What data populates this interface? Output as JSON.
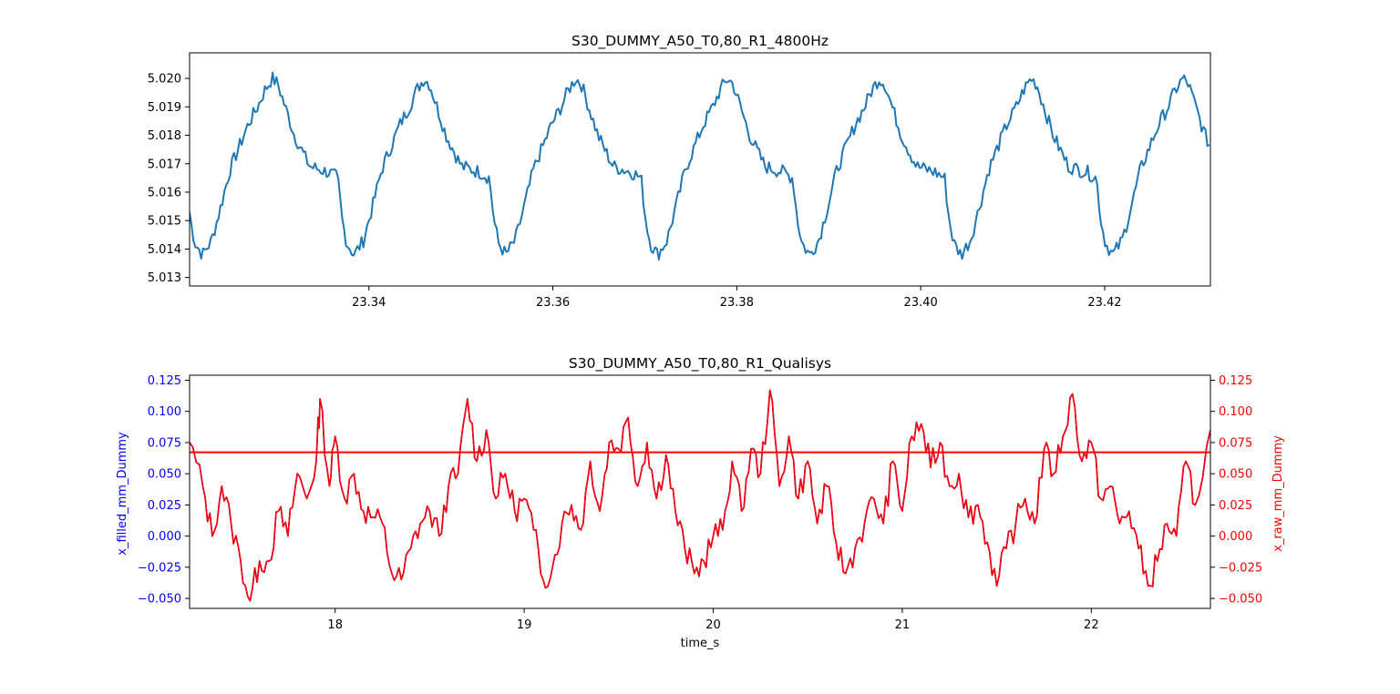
{
  "colors": {
    "top_series": "#1f77b4",
    "filled": "#0000ff",
    "raw": "#ff0000",
    "horizontal_line": "#ff0000",
    "axes": "#000000"
  },
  "chart_data": [
    {
      "type": "line",
      "title": "S30_DUMMY_A50_T0,80_R1_4800Hz",
      "xlabel": "",
      "ylabel": "",
      "xlim": [
        23.3205,
        23.4315
      ],
      "ylim": [
        5.0127,
        5.0209
      ],
      "grid": false,
      "x_ticks": [
        23.34,
        23.36,
        23.38,
        23.4,
        23.42
      ],
      "x_tick_labels": [
        "23.34",
        "23.36",
        "23.38",
        "23.40",
        "23.42"
      ],
      "y_ticks": [
        5.013,
        5.014,
        5.015,
        5.016,
        5.017,
        5.018,
        5.019,
        5.02
      ],
      "y_tick_labels": [
        "5.013",
        "5.014",
        "5.015",
        "5.016",
        "5.017",
        "5.018",
        "5.019",
        "5.020"
      ],
      "series": [
        {
          "color": "#1f77b4",
          "period": 0.0165,
          "x_start": 23.3205,
          "x_end": 23.4315,
          "cycle": [
            [
              0.0,
              5.0169
            ],
            [
              0.001,
              5.0168
            ],
            [
              0.002,
              5.0167
            ],
            [
              0.003,
              5.0165
            ],
            [
              0.0035,
              5.015
            ],
            [
              0.004,
              5.0142
            ],
            [
              0.0048,
              5.0138
            ],
            [
              0.0058,
              5.0143
            ],
            [
              0.0068,
              5.0155
            ],
            [
              0.0078,
              5.0168
            ],
            [
              0.0088,
              5.0176
            ],
            [
              0.0098,
              5.0184
            ],
            [
              0.0108,
              5.019
            ],
            [
              0.0116,
              5.0196
            ],
            [
              0.0124,
              5.02
            ],
            [
              0.013,
              5.0198
            ],
            [
              0.0136,
              5.0192
            ],
            [
              0.0142,
              5.0186
            ],
            [
              0.0148,
              5.018
            ],
            [
              0.0154,
              5.0176
            ],
            [
              0.016,
              5.0172
            ],
            [
              0.0165,
              5.0169
            ]
          ],
          "x0_phase": 0.0034,
          "noise_amplitude": 0.00025
        }
      ]
    },
    {
      "type": "line",
      "title": "S30_DUMMY_A50_T0,80_R1_Qualisys",
      "xlabel": "time_s",
      "ylabel": "x_filled_mm_Dummy",
      "y2label": "x_raw_mm_Dummy",
      "xlim": [
        17.23,
        22.63
      ],
      "ylim": [
        -0.058,
        0.129
      ],
      "y2lim": [
        -0.058,
        0.129
      ],
      "grid": false,
      "x_ticks": [
        18,
        19,
        20,
        21,
        22
      ],
      "x_tick_labels": [
        "18",
        "19",
        "20",
        "21",
        "22"
      ],
      "y_ticks": [
        -0.05,
        -0.025,
        0.0,
        0.025,
        0.05,
        0.075,
        0.1,
        0.125
      ],
      "y_tick_labels": [
        "−0.050",
        "−0.025",
        "0.000",
        "0.025",
        "0.050",
        "0.075",
        "0.100",
        "0.125"
      ],
      "y2_ticks": [
        -0.05,
        -0.025,
        0.0,
        0.025,
        0.05,
        0.075,
        0.1,
        0.125
      ],
      "y2_tick_labels": [
        "−0.050",
        "−0.025",
        "0.000",
        "0.025",
        "0.050",
        "0.075",
        "0.100",
        "0.125"
      ],
      "horizontal_line": {
        "y": 0.0672,
        "color": "#ff0000"
      },
      "series": [
        {
          "name": "",
          "color": "#0000ff",
          "anchors": [
            [
              17.23,
              0.075
            ],
            [
              17.3,
              0.04
            ],
            [
              17.35,
              0.0
            ],
            [
              17.4,
              0.04
            ],
            [
              17.45,
              0.01
            ],
            [
              17.5,
              -0.02
            ],
            [
              17.55,
              -0.052
            ],
            [
              17.6,
              -0.02
            ],
            [
              17.65,
              -0.02
            ],
            [
              17.7,
              0.02
            ],
            [
              17.75,
              0.0
            ],
            [
              17.8,
              0.05
            ],
            [
              17.85,
              0.03
            ],
            [
              17.9,
              0.06
            ],
            [
              17.92,
              0.11
            ],
            [
              17.97,
              0.04
            ],
            [
              18.0,
              0.08
            ],
            [
              18.05,
              0.03
            ],
            [
              18.1,
              0.05
            ],
            [
              18.15,
              0.02
            ],
            [
              18.2,
              0.015
            ],
            [
              18.25,
              0.01
            ],
            [
              18.3,
              -0.03
            ],
            [
              18.35,
              -0.035
            ],
            [
              18.4,
              -0.01
            ],
            [
              18.45,
              0.01
            ],
            [
              18.5,
              0.02
            ],
            [
              18.55,
              0.0
            ],
            [
              18.6,
              0.04
            ],
            [
              18.65,
              0.05
            ],
            [
              18.7,
              0.11
            ],
            [
              18.75,
              0.06
            ],
            [
              18.8,
              0.085
            ],
            [
              18.85,
              0.03
            ],
            [
              18.9,
              0.05
            ],
            [
              18.95,
              0.02
            ],
            [
              19.0,
              0.03
            ],
            [
              19.05,
              0.005
            ],
            [
              19.1,
              -0.035
            ],
            [
              19.15,
              -0.025
            ],
            [
              19.2,
              0.01
            ],
            [
              19.25,
              0.025
            ],
            [
              19.3,
              0.005
            ],
            [
              19.35,
              0.06
            ],
            [
              19.4,
              0.02
            ],
            [
              19.45,
              0.075
            ],
            [
              19.5,
              0.07
            ],
            [
              19.55,
              0.095
            ],
            [
              19.6,
              0.04
            ],
            [
              19.65,
              0.075
            ],
            [
              19.7,
              0.03
            ],
            [
              19.75,
              0.065
            ],
            [
              19.8,
              0.02
            ],
            [
              19.85,
              -0.01
            ],
            [
              19.9,
              -0.03
            ],
            [
              19.95,
              -0.02
            ],
            [
              20.0,
              0.0
            ],
            [
              20.05,
              0.005
            ],
            [
              20.1,
              0.06
            ],
            [
              20.15,
              0.02
            ],
            [
              20.2,
              0.07
            ],
            [
              20.25,
              0.05
            ],
            [
              20.3,
              0.117
            ],
            [
              20.35,
              0.04
            ],
            [
              20.4,
              0.08
            ],
            [
              20.45,
              0.03
            ],
            [
              20.5,
              0.06
            ],
            [
              20.55,
              0.01
            ],
            [
              20.6,
              0.04
            ],
            [
              20.65,
              -0.005
            ],
            [
              20.7,
              -0.03
            ],
            [
              20.75,
              -0.01
            ],
            [
              20.8,
              0.01
            ],
            [
              20.85,
              0.03
            ],
            [
              20.9,
              0.01
            ],
            [
              20.95,
              0.06
            ],
            [
              21.0,
              0.02
            ],
            [
              21.05,
              0.08
            ],
            [
              21.1,
              0.09
            ],
            [
              21.15,
              0.055
            ],
            [
              21.2,
              0.075
            ],
            [
              21.25,
              0.04
            ],
            [
              21.3,
              0.05
            ],
            [
              21.35,
              0.015
            ],
            [
              21.4,
              0.025
            ],
            [
              21.45,
              -0.005
            ],
            [
              21.5,
              -0.04
            ],
            [
              21.55,
              -0.01
            ],
            [
              21.6,
              0.01
            ],
            [
              21.65,
              0.03
            ],
            [
              21.7,
              0.01
            ],
            [
              21.75,
              0.07
            ],
            [
              21.8,
              0.05
            ],
            [
              21.85,
              0.08
            ],
            [
              21.9,
              0.114
            ],
            [
              21.95,
              0.06
            ],
            [
              22.0,
              0.075
            ],
            [
              22.05,
              0.03
            ],
            [
              22.1,
              0.04
            ],
            [
              22.15,
              0.01
            ],
            [
              22.2,
              0.02
            ],
            [
              22.25,
              -0.01
            ],
            [
              22.3,
              -0.04
            ],
            [
              22.35,
              -0.02
            ],
            [
              22.4,
              0.01
            ],
            [
              22.45,
              0.0
            ],
            [
              22.5,
              0.06
            ],
            [
              22.55,
              0.025
            ],
            [
              22.63,
              0.085
            ]
          ]
        },
        {
          "name": "",
          "color": "#ff0000",
          "offset_from_filled": 0.0
        }
      ]
    }
  ]
}
